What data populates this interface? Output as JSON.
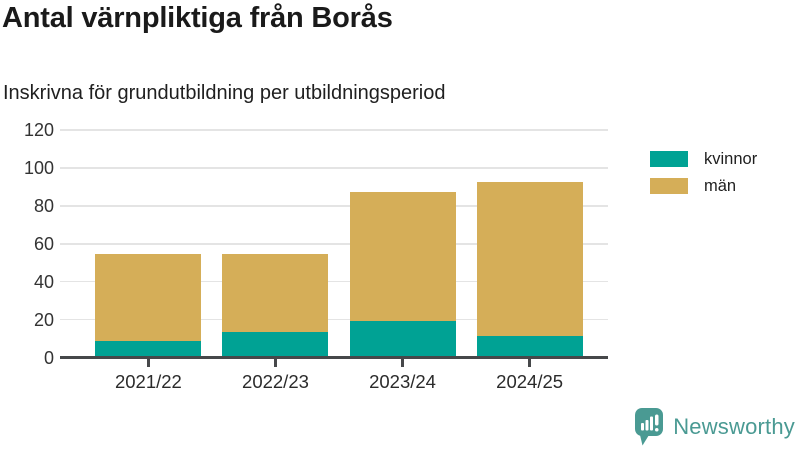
{
  "header": {
    "title": "Antal värnpliktiga från Borås",
    "subtitle": "Inskrivna för grundutbildning per utbildningsperiod"
  },
  "chart_data": {
    "type": "bar",
    "stacked": true,
    "title": "Antal värnpliktiga från Borås",
    "subtitle": "Inskrivna för grundutbildning per utbildningsperiod",
    "categories": [
      "2021/22",
      "2022/23",
      "2023/24",
      "2024/25"
    ],
    "series": [
      {
        "name": "kvinnor",
        "color": "#00a294",
        "values": [
          9,
          14,
          20,
          12
        ]
      },
      {
        "name": "män",
        "color": "#d5ae58",
        "values": [
          46,
          41,
          68,
          81
        ]
      }
    ],
    "totals": [
      55,
      55,
      88,
      93
    ],
    "xlabel": "",
    "ylabel": "",
    "ylim": [
      0,
      120
    ],
    "yticks": [
      0,
      20,
      40,
      60,
      80,
      100,
      120
    ],
    "grid": true,
    "legend_position": "right"
  },
  "branding": {
    "name": "Newsworthy",
    "color": "#4a9a93",
    "logo_icon": "bar-chart-speech-bubble"
  },
  "colors": {
    "axis": "#46484a",
    "gridline": "#e4e4e4",
    "tick_label": "#333333"
  }
}
